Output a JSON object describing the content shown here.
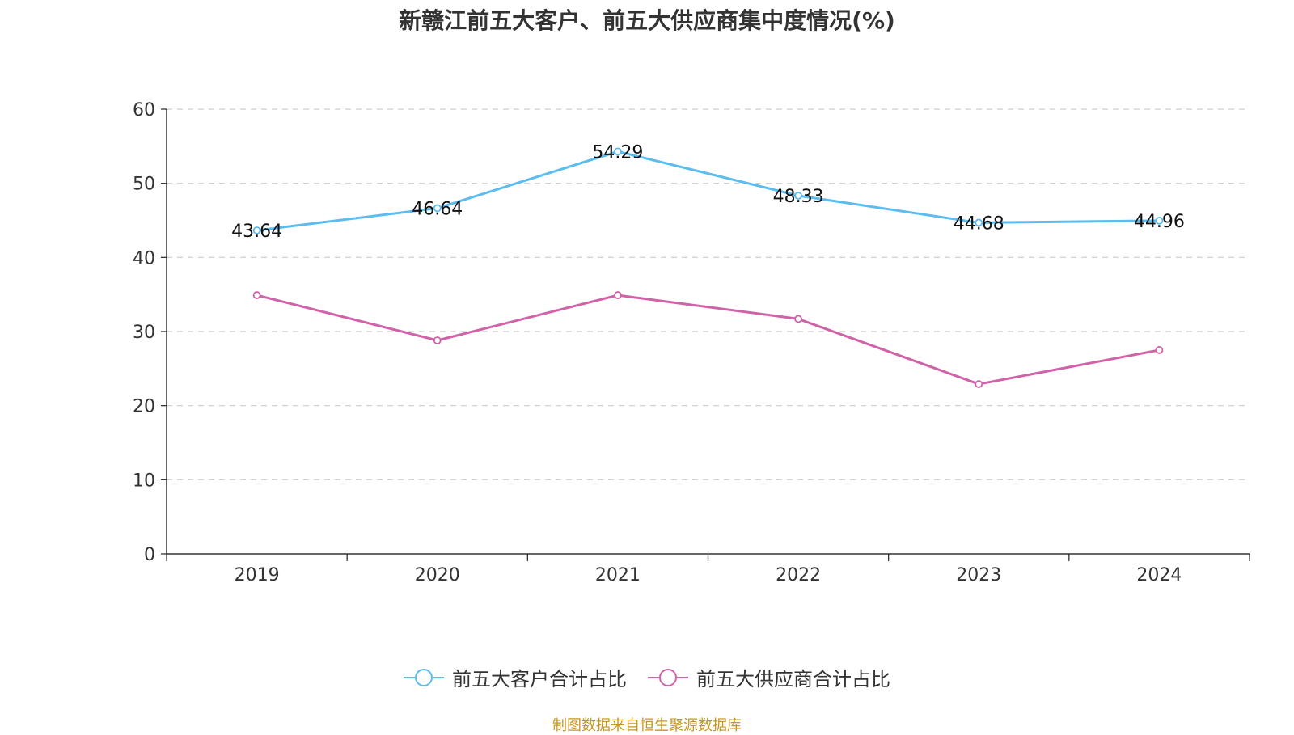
{
  "chart_data": {
    "type": "line",
    "title": "新赣江前五大客户、前五大供应商集中度情况(%)",
    "categories": [
      "2019",
      "2020",
      "2021",
      "2022",
      "2023",
      "2024"
    ],
    "ylim": [
      0,
      60
    ],
    "yticks": [
      0,
      10,
      20,
      30,
      40,
      50,
      60
    ],
    "grid": true,
    "legend_position": "bottom-center",
    "series": [
      {
        "name": "前五大客户合计占比",
        "color": "#5bbcf0",
        "values": [
          43.64,
          46.64,
          54.29,
          48.33,
          44.68,
          44.96
        ],
        "labels": [
          "43.64",
          "46.64",
          "54.29",
          "48.33",
          "44.68",
          "44.96"
        ]
      },
      {
        "name": "前五大供应商合计占比",
        "color": "#d063a8",
        "values": [
          34.9,
          28.8,
          34.9,
          31.7,
          22.9,
          27.5
        ]
      }
    ]
  },
  "footer": {
    "source": "制图数据来自恒生聚源数据库"
  }
}
